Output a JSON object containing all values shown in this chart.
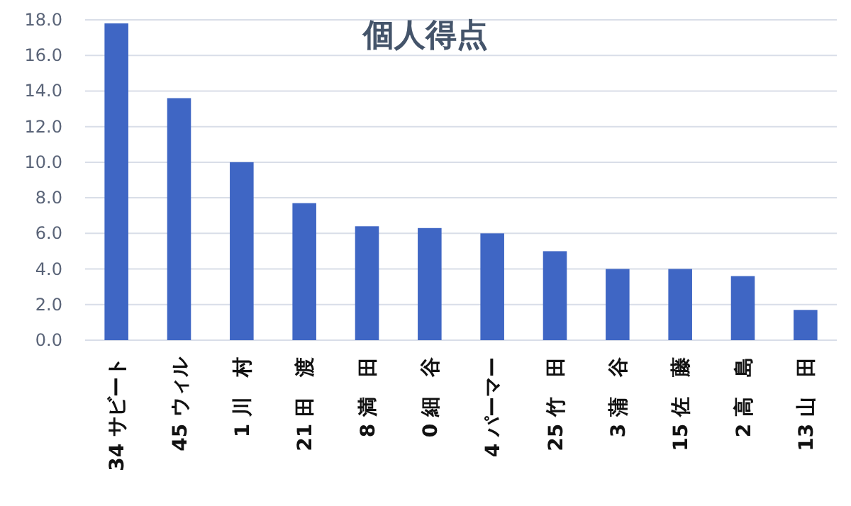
{
  "chart_data": {
    "type": "bar",
    "title": "個人得点",
    "categories": [
      "34 サビート",
      "45 ウィル",
      "1 川　村",
      "21 田　渡",
      "8 満　田",
      "0 細　谷",
      "4 パーマー",
      "25 竹　田",
      "3 蒲　谷",
      "15 佐　藤",
      "2 高　島",
      "13 山　田"
    ],
    "values": [
      17.8,
      13.6,
      10.0,
      7.7,
      6.4,
      6.3,
      6.0,
      5.0,
      4.0,
      4.0,
      3.6,
      1.7
    ],
    "color": "#3f66c4",
    "ylim": [
      0,
      18
    ],
    "yticks": [
      {
        "value": 0,
        "label": "0.0"
      },
      {
        "value": 2,
        "label": "2.0"
      },
      {
        "value": 4,
        "label": "4.0"
      },
      {
        "value": 6,
        "label": "6.0"
      },
      {
        "value": 8,
        "label": "8.0"
      },
      {
        "value": 10,
        "label": "10.0"
      },
      {
        "value": 12,
        "label": "12.0"
      },
      {
        "value": 14,
        "label": "14.0"
      },
      {
        "value": 16,
        "label": "16.0"
      },
      {
        "value": 18,
        "label": "18.0"
      }
    ],
    "grid": "y"
  }
}
